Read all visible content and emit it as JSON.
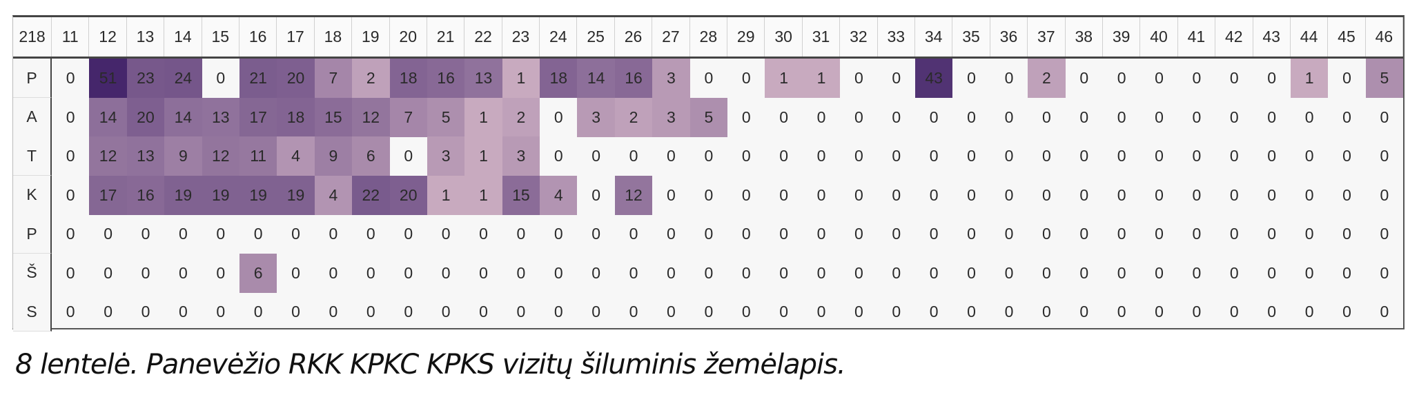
{
  "caption": "8 lentelė. Panevėžio RKK KPKC KPKS vizitų šiluminis žemėlapis.",
  "chart_data": {
    "type": "heatmap",
    "corner_label": "218",
    "columns": [
      "11",
      "12",
      "13",
      "14",
      "15",
      "16",
      "17",
      "18",
      "19",
      "20",
      "21",
      "22",
      "23",
      "24",
      "25",
      "26",
      "27",
      "28",
      "29",
      "30",
      "31",
      "32",
      "33",
      "34",
      "35",
      "36",
      "37",
      "38",
      "39",
      "40",
      "41",
      "42",
      "43",
      "44",
      "45",
      "46"
    ],
    "rows": [
      {
        "label": "P",
        "values": [
          0,
          51,
          23,
          24,
          0,
          21,
          20,
          7,
          2,
          18,
          16,
          13,
          1,
          18,
          14,
          16,
          3,
          0,
          0,
          1,
          1,
          0,
          0,
          43,
          0,
          0,
          2,
          0,
          0,
          0,
          0,
          0,
          0,
          1,
          0,
          5
        ]
      },
      {
        "label": "A",
        "values": [
          0,
          14,
          20,
          14,
          13,
          17,
          18,
          15,
          12,
          7,
          5,
          1,
          2,
          0,
          3,
          2,
          3,
          5,
          0,
          0,
          0,
          0,
          0,
          0,
          0,
          0,
          0,
          0,
          0,
          0,
          0,
          0,
          0,
          0,
          0,
          0
        ]
      },
      {
        "label": "T",
        "values": [
          0,
          12,
          13,
          9,
          12,
          11,
          4,
          9,
          6,
          0,
          3,
          1,
          3,
          0,
          0,
          0,
          0,
          0,
          0,
          0,
          0,
          0,
          0,
          0,
          0,
          0,
          0,
          0,
          0,
          0,
          0,
          0,
          0,
          0,
          0,
          0
        ]
      },
      {
        "label": "K",
        "values": [
          0,
          17,
          16,
          19,
          19,
          19,
          19,
          4,
          22,
          20,
          1,
          1,
          15,
          4,
          0,
          12,
          0,
          0,
          0,
          0,
          0,
          0,
          0,
          0,
          0,
          0,
          0,
          0,
          0,
          0,
          0,
          0,
          0,
          0,
          0,
          0
        ]
      },
      {
        "label": "P",
        "values": [
          0,
          0,
          0,
          0,
          0,
          0,
          0,
          0,
          0,
          0,
          0,
          0,
          0,
          0,
          0,
          0,
          0,
          0,
          0,
          0,
          0,
          0,
          0,
          0,
          0,
          0,
          0,
          0,
          0,
          0,
          0,
          0,
          0,
          0,
          0,
          0
        ]
      },
      {
        "label": "Š",
        "values": [
          0,
          0,
          0,
          0,
          0,
          6,
          0,
          0,
          0,
          0,
          0,
          0,
          0,
          0,
          0,
          0,
          0,
          0,
          0,
          0,
          0,
          0,
          0,
          0,
          0,
          0,
          0,
          0,
          0,
          0,
          0,
          0,
          0,
          0,
          0,
          0
        ]
      },
      {
        "label": "S",
        "values": [
          0,
          0,
          0,
          0,
          0,
          0,
          0,
          0,
          0,
          0,
          0,
          0,
          0,
          0,
          0,
          0,
          0,
          0,
          0,
          0,
          0,
          0,
          0,
          0,
          0,
          0,
          0,
          0,
          0,
          0,
          0,
          0,
          0,
          0,
          0,
          0
        ]
      }
    ],
    "color_scale": {
      "low": "#ddbfcd",
      "high": "#45266b",
      "zero": "#f7f7f7"
    },
    "value_range": [
      0,
      51
    ]
  }
}
